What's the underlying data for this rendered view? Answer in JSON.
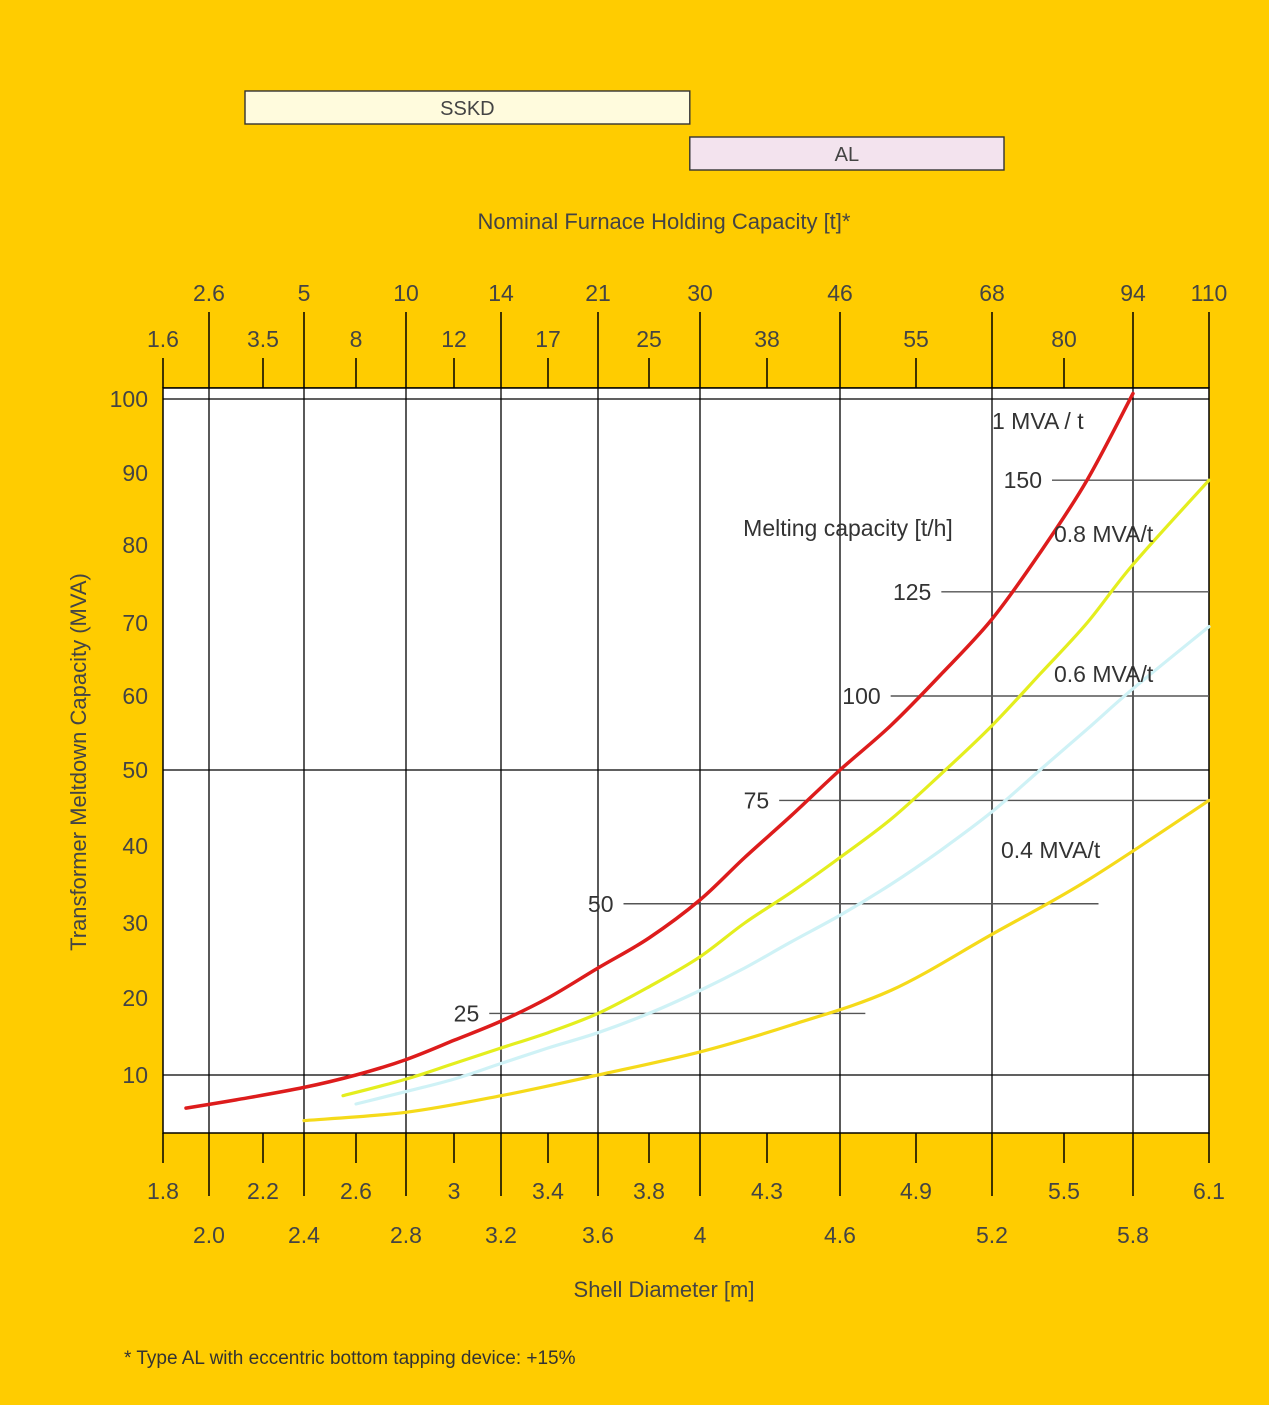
{
  "range_bars": [
    {
      "label": "SSKD",
      "from_t": 3.2,
      "to_t": 29,
      "fill": "#FFFBDD"
    },
    {
      "label": "AL",
      "from_t": 29,
      "to_t": 70,
      "fill": "#F3E3EE"
    }
  ],
  "colors": {
    "background": "#FFCC00",
    "plot_bg": "#FFFFFF",
    "grid": "#000000",
    "melting_lines": "#555555"
  },
  "footnote": "* Type AL with eccentric bottom tapping device: +15%",
  "chart_data": {
    "type": "line",
    "ylabel": "Transformer Meltdown Capacity (MVA)",
    "xlabel": "Shell Diameter [m]",
    "x2label": "Nominal Furnace Holding Capacity [t]*",
    "ylim": [
      3,
      102
    ],
    "y_ticks": [
      10,
      20,
      30,
      40,
      50,
      60,
      70,
      80,
      90,
      100
    ],
    "y_gridlines": [
      10,
      50,
      100
    ],
    "top_axis_ticks": [
      {
        "label": "1.6",
        "row": 2,
        "major": true
      },
      {
        "label": "2.6",
        "row": 1,
        "major": true
      },
      {
        "label": "3.5",
        "row": 2,
        "major": false
      },
      {
        "label": "5",
        "row": 1,
        "major": true
      },
      {
        "label": "8",
        "row": 2,
        "major": false
      },
      {
        "label": "10",
        "row": 1,
        "major": true
      },
      {
        "label": "12",
        "row": 2,
        "major": false
      },
      {
        "label": "14",
        "row": 1,
        "major": true
      },
      {
        "label": "17",
        "row": 2,
        "major": false
      },
      {
        "label": "21",
        "row": 1,
        "major": true
      },
      {
        "label": "25",
        "row": 2,
        "major": false
      },
      {
        "label": "30",
        "row": 1,
        "major": true
      },
      {
        "label": "38",
        "row": 2,
        "major": false
      },
      {
        "label": "46",
        "row": 1,
        "major": true
      },
      {
        "label": "55",
        "row": 2,
        "major": false
      },
      {
        "label": "68",
        "row": 1,
        "major": true
      },
      {
        "label": "80",
        "row": 2,
        "major": false
      },
      {
        "label": "94",
        "row": 1,
        "major": true
      },
      {
        "label": "110",
        "row": 1,
        "major": true
      }
    ],
    "bottom_axis_ticks": [
      {
        "label": "1.8",
        "value": 1.8,
        "row": 1,
        "major": true
      },
      {
        "label": "2.0",
        "value": 2.0,
        "row": 2,
        "major": true
      },
      {
        "label": "2.2",
        "value": 2.2,
        "row": 1,
        "major": false
      },
      {
        "label": "2.4",
        "value": 2.4,
        "row": 2,
        "major": true
      },
      {
        "label": "2.6",
        "value": 2.6,
        "row": 1,
        "major": false
      },
      {
        "label": "2.8",
        "value": 2.8,
        "row": 2,
        "major": true
      },
      {
        "label": "3",
        "value": 3.0,
        "row": 1,
        "major": false
      },
      {
        "label": "3.2",
        "value": 3.2,
        "row": 2,
        "major": true
      },
      {
        "label": "3.4",
        "value": 3.4,
        "row": 1,
        "major": false
      },
      {
        "label": "3.6",
        "value": 3.6,
        "row": 2,
        "major": true
      },
      {
        "label": "3.8",
        "value": 3.8,
        "row": 1,
        "major": false
      },
      {
        "label": "4",
        "value": 4.0,
        "row": 2,
        "major": true
      },
      {
        "label": "4.3",
        "value": 4.3,
        "row": 1,
        "major": false
      },
      {
        "label": "4.6",
        "value": 4.6,
        "row": 2,
        "major": true
      },
      {
        "label": "4.9",
        "value": 4.9,
        "row": 1,
        "major": false
      },
      {
        "label": "5.2",
        "value": 5.2,
        "row": 2,
        "major": true
      },
      {
        "label": "5.5",
        "value": 5.5,
        "row": 1,
        "major": false
      },
      {
        "label": "5.8",
        "value": 5.8,
        "row": 2,
        "major": true
      },
      {
        "label": "6.1",
        "value": 6.1,
        "row": 1,
        "major": true
      }
    ],
    "series": [
      {
        "name": "1 MVA / t",
        "color": "#DD1C1C",
        "x": [
          1.9,
          2.1,
          2.4,
          2.6,
          2.8,
          3.0,
          3.2,
          3.4,
          3.6,
          3.8,
          4.0,
          4.2,
          4.4,
          4.6,
          4.8,
          5.0,
          5.2,
          5.4,
          5.6,
          5.8
        ],
        "y": [
          6,
          7,
          8.5,
          10,
          12,
          14.5,
          17,
          20,
          24,
          28,
          33,
          38.5,
          44,
          50,
          56,
          63,
          70.5,
          79,
          89,
          101
        ]
      },
      {
        "name": "0.8 MVA/t",
        "color": "#E4EE1E",
        "x": [
          2.55,
          2.8,
          3.0,
          3.2,
          3.4,
          3.6,
          3.8,
          4.0,
          4.2,
          4.4,
          4.6,
          4.8,
          5.0,
          5.2,
          5.4,
          5.6,
          5.8,
          6.1
        ],
        "y": [
          7.5,
          9.5,
          11.5,
          13.5,
          15.5,
          18,
          21.5,
          25.5,
          30,
          34,
          38.5,
          43.5,
          49.5,
          56,
          63,
          70,
          77.5,
          89
        ]
      },
      {
        "name": "0.6 MVA/t",
        "color": "#CFF2F6",
        "x": [
          2.6,
          2.8,
          3.0,
          3.2,
          3.4,
          3.6,
          3.8,
          4.0,
          4.2,
          4.4,
          4.6,
          4.8,
          5.0,
          5.2,
          5.4,
          5.6,
          5.8,
          6.1
        ],
        "y": [
          6.5,
          8,
          9.5,
          11.5,
          13.5,
          15.5,
          18,
          21,
          24,
          27.5,
          31,
          35,
          39.5,
          44.5,
          50,
          55.5,
          61,
          69.5
        ]
      },
      {
        "name": "0.4 MVA/t",
        "color": "#F5DA1A",
        "x": [
          2.4,
          2.8,
          3.2,
          3.6,
          4.0,
          4.4,
          4.8,
          5.2,
          5.6,
          6.1
        ],
        "y": [
          4.5,
          5.5,
          7.5,
          10,
          13,
          16.5,
          21,
          28.5,
          35.5,
          46
        ]
      }
    ],
    "melting_capacity": {
      "title": "Melting capacity [t/h]",
      "lines": [
        {
          "label": "25",
          "y": 18,
          "x_from": 3.15,
          "x_to": 4.7
        },
        {
          "label": "50",
          "y": 32.5,
          "x_from": 3.7,
          "x_to": 5.65
        },
        {
          "label": "75",
          "y": 46,
          "x_from": 4.35,
          "x_to": 6.1
        },
        {
          "label": "100",
          "y": 60,
          "x_from": 4.8,
          "x_to": 6.1
        },
        {
          "label": "125",
          "y": 74,
          "x_from": 5.0,
          "x_to": 6.1
        },
        {
          "label": "150",
          "y": 89,
          "x_from": 5.45,
          "x_to": 6.1
        }
      ]
    }
  }
}
